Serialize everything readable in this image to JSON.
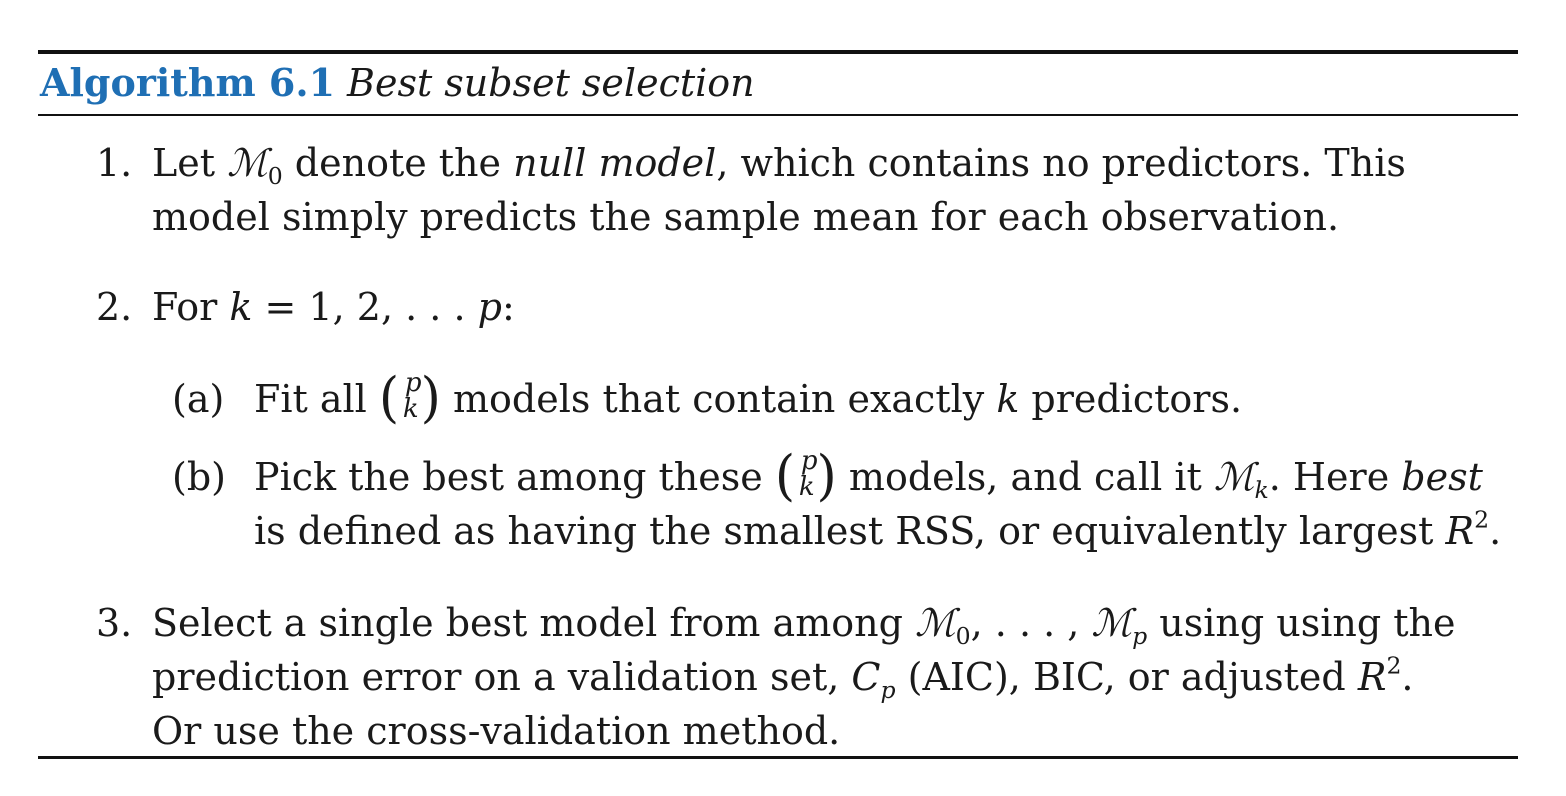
{
  "caption": {
    "label": "Algorithm 6.1",
    "title": "Best subset selection"
  },
  "symbols": {
    "calM": "ℳ",
    "sub_0": "0",
    "sub_k": "k",
    "sub_p": "p",
    "sup_2": "2",
    "k": "k",
    "p": "p",
    "R": "R",
    "C": "C",
    "lparen": "(",
    "rparen": ")"
  },
  "steps": [
    {
      "num": "1.",
      "a": "Let ",
      "b": " denote the ",
      "em": "null model",
      "c": ", which contains no predictors. This",
      "line2": "model simply predicts the sample mean for each observation."
    },
    {
      "num": "2.",
      "a": "For ",
      "b": " = 1, 2, . . . ",
      "c": ":"
    },
    {
      "num": "3.",
      "a": "Select a single best model from among ",
      "b": ", . . . , ",
      "c": " using using the",
      "line2a": "prediction error on a validation set, ",
      "line2b": " (AIC), BIC, or adjusted ",
      "line2c": ".",
      "line3": "Or use the cross-validation method."
    }
  ],
  "substeps": [
    {
      "label": "(a)",
      "a": "Fit all ",
      "b": " models that contain exactly ",
      "c": " predictors."
    },
    {
      "label": "(b)",
      "a": "Pick the best among these ",
      "b": " models, and call it ",
      "c": ". Here ",
      "em": "best",
      "line2": "is defined as having the smallest RSS, or equivalently largest ",
      "line2end": "."
    }
  ]
}
